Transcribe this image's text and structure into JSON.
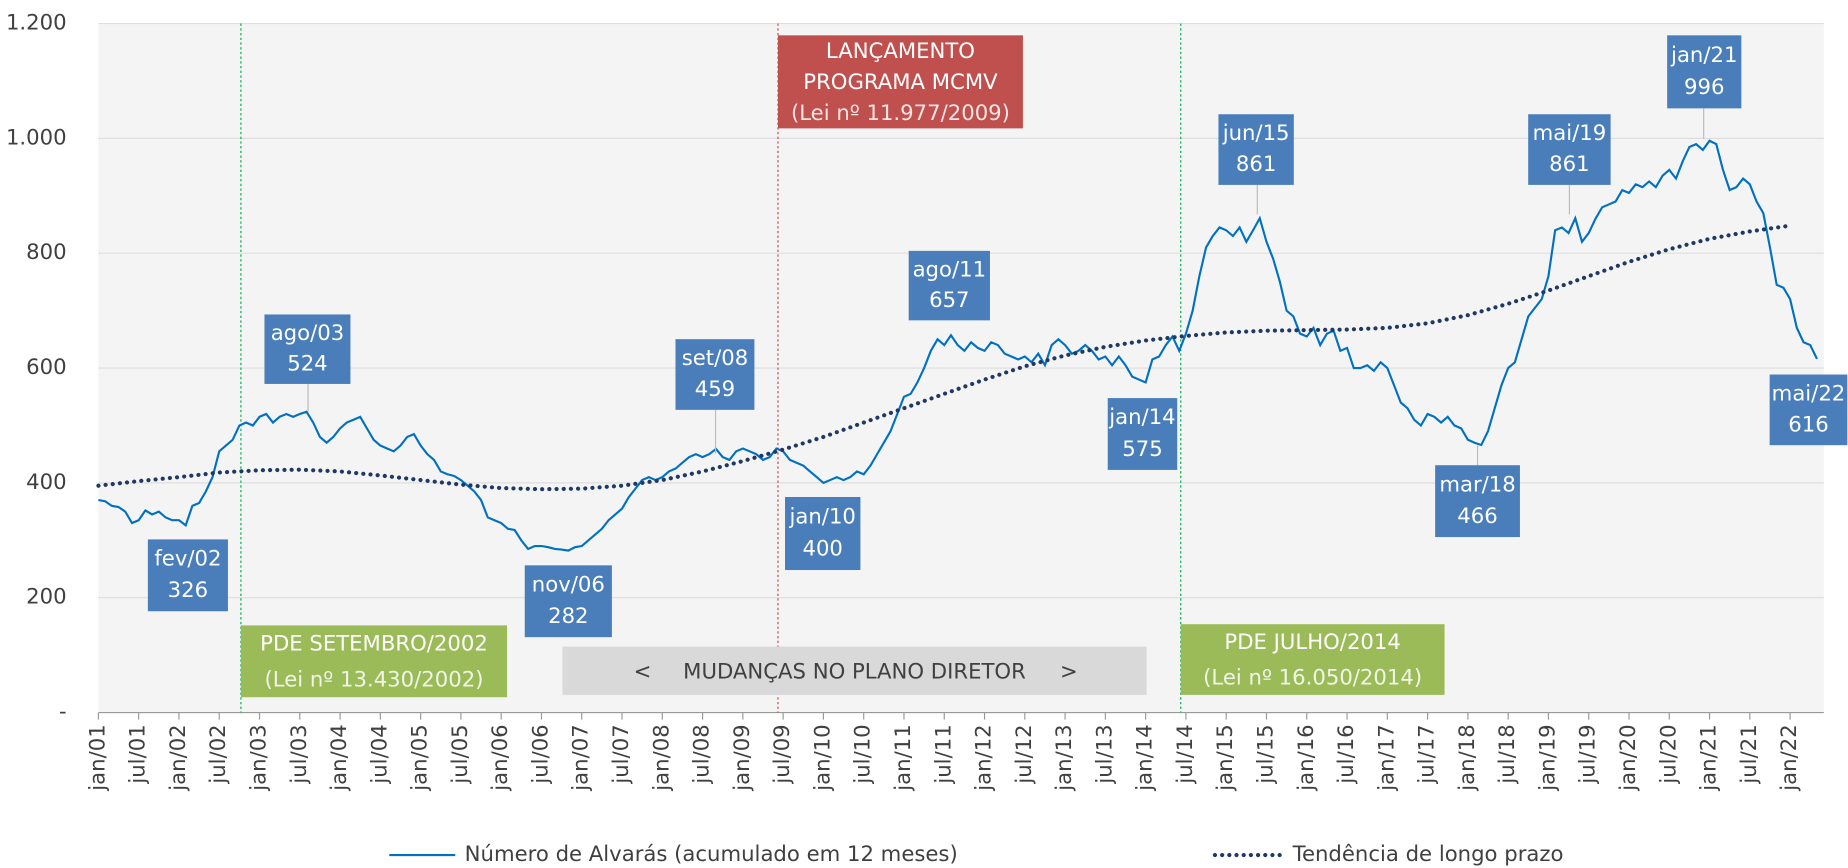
{
  "chart_data": {
    "type": "line",
    "categories": [
      "jan/01",
      null,
      null,
      null,
      null,
      null,
      "jul/01",
      null,
      null,
      null,
      null,
      null,
      "jan/02",
      null,
      null,
      null,
      null,
      null,
      "jul/02",
      null,
      null,
      null,
      null,
      null,
      "jan/03",
      null,
      null,
      null,
      null,
      null,
      "jul/03",
      null,
      null,
      null,
      null,
      null,
      "jan/04",
      null,
      null,
      null,
      null,
      null,
      "jul/04",
      null,
      null,
      null,
      null,
      null,
      "jan/05",
      null,
      null,
      null,
      null,
      null,
      "jul/05",
      null,
      null,
      null,
      null,
      null,
      "jan/06",
      null,
      null,
      null,
      null,
      null,
      "jul/06",
      null,
      null,
      null,
      null,
      null,
      "jan/07",
      null,
      null,
      null,
      null,
      null,
      "jul/07",
      null,
      null,
      null,
      null,
      null,
      "jan/08",
      null,
      null,
      null,
      null,
      null,
      "jul/08",
      null,
      null,
      null,
      null,
      null,
      "jan/09",
      null,
      null,
      null,
      null,
      null,
      "jul/09",
      null,
      null,
      null,
      null,
      null,
      "jan/10",
      null,
      null,
      null,
      null,
      null,
      "jul/10",
      null,
      null,
      null,
      null,
      null,
      "jan/11",
      null,
      null,
      null,
      null,
      null,
      "jul/11",
      null,
      null,
      null,
      null,
      null,
      "jan/12",
      null,
      null,
      null,
      null,
      null,
      "jul/12",
      null,
      null,
      null,
      null,
      null,
      "jan/13",
      null,
      null,
      null,
      null,
      null,
      "jul/13",
      null,
      null,
      null,
      null,
      null,
      "jan/14",
      null,
      null,
      null,
      null,
      null,
      "jul/14",
      null,
      null,
      null,
      null,
      null,
      "jan/15",
      null,
      null,
      null,
      null,
      null,
      "jul/15",
      null,
      null,
      null,
      null,
      null,
      "jan/16",
      null,
      null,
      null,
      null,
      null,
      "jul/16",
      null,
      null,
      null,
      null,
      null,
      "jan/17",
      null,
      null,
      null,
      null,
      null,
      "jul/17",
      null,
      null,
      null,
      null,
      null,
      "jan/18",
      null,
      null,
      null,
      null,
      null,
      "jul/18",
      null,
      null,
      null,
      null,
      null,
      "jan/19",
      null,
      null,
      null,
      null,
      null,
      "jul/19",
      null,
      null,
      null,
      null,
      null,
      "jan/20",
      null,
      null,
      null,
      null,
      null,
      "jul/20",
      null,
      null,
      null,
      null,
      null,
      "jan/21",
      null,
      null,
      null,
      null,
      null,
      "jul/21",
      null,
      null,
      null,
      null,
      null,
      "jan/22",
      null,
      null,
      null,
      null
    ],
    "series": [
      {
        "name": "Número de Alvarás (acumulado em 12 meses)",
        "color": "#0070c0",
        "values": [
          370,
          368,
          360,
          358,
          350,
          330,
          335,
          352,
          345,
          350,
          340,
          335,
          335,
          326,
          360,
          365,
          385,
          410,
          455,
          465,
          475,
          500,
          505,
          500,
          515,
          520,
          505,
          515,
          520,
          515,
          520,
          524,
          505,
          480,
          470,
          480,
          495,
          505,
          510,
          515,
          495,
          475,
          465,
          460,
          455,
          465,
          480,
          485,
          465,
          450,
          440,
          420,
          415,
          412,
          405,
          395,
          385,
          370,
          340,
          335,
          330,
          320,
          318,
          300,
          285,
          290,
          290,
          288,
          285,
          284,
          282,
          288,
          290,
          300,
          310,
          320,
          335,
          345,
          355,
          375,
          390,
          405,
          410,
          405,
          410,
          420,
          425,
          435,
          445,
          450,
          445,
          450,
          459,
          445,
          440,
          455,
          460,
          455,
          450,
          440,
          445,
          460,
          455,
          440,
          435,
          430,
          420,
          410,
          400,
          405,
          410,
          405,
          410,
          420,
          415,
          430,
          450,
          470,
          490,
          520,
          550,
          555,
          575,
          600,
          630,
          650,
          640,
          657,
          640,
          630,
          645,
          635,
          630,
          645,
          640,
          625,
          620,
          615,
          620,
          610,
          625,
          605,
          640,
          650,
          640,
          625,
          630,
          640,
          630,
          615,
          620,
          605,
          620,
          605,
          585,
          580,
          575,
          615,
          620,
          640,
          655,
          630,
          660,
          700,
          760,
          810,
          830,
          845,
          840,
          830,
          845,
          820,
          840,
          861,
          820,
          790,
          750,
          700,
          690,
          660,
          655,
          670,
          640,
          660,
          665,
          630,
          635,
          600,
          600,
          605,
          595,
          610,
          600,
          570,
          540,
          530,
          510,
          500,
          520,
          515,
          505,
          515,
          500,
          495,
          475,
          470,
          466,
          490,
          530,
          570,
          600,
          610,
          650,
          690,
          705,
          720,
          760,
          840,
          845,
          835,
          861,
          820,
          835,
          860,
          880,
          885,
          890,
          910,
          905,
          920,
          915,
          925,
          915,
          935,
          945,
          930,
          960,
          985,
          990,
          980,
          996,
          990,
          945,
          910,
          915,
          930,
          920,
          890,
          870,
          810,
          745,
          740,
          720,
          670,
          645,
          640,
          616
        ]
      },
      {
        "name": "Tendência de longo prazo",
        "color": "#1f3864",
        "style": "dotted",
        "x": [
          "jan/01",
          "jul/01",
          "jan/02",
          "jul/02",
          "jan/03",
          "jul/03",
          "jan/04",
          "jul/04",
          "jan/05",
          "jul/05",
          "jan/06",
          "jul/06",
          "jan/07",
          "jul/07",
          "jan/08",
          "jul/08",
          "jan/09",
          "jul/09",
          "jan/10",
          "jul/10",
          "jan/11",
          "jul/11",
          "jan/12",
          "jul/12",
          "jan/13",
          "jul/13",
          "jan/14",
          "jul/14",
          "jan/15",
          "jul/15",
          "jan/16",
          "jul/16",
          "jan/17",
          "jul/17",
          "jan/18",
          "jul/18",
          "jan/19",
          "jul/19",
          "jan/20",
          "jul/20",
          "jan/21",
          "jul/21",
          "jan/22"
        ],
        "values": [
          395,
          403,
          410,
          418,
          422,
          423,
          420,
          413,
          405,
          397,
          391,
          389,
          390,
          395,
          405,
          420,
          438,
          458,
          480,
          505,
          530,
          555,
          580,
          603,
          622,
          637,
          648,
          656,
          662,
          665,
          666,
          667,
          670,
          678,
          692,
          712,
          735,
          760,
          785,
          807,
          825,
          838,
          848
        ]
      }
    ],
    "ylim": [
      0,
      1200
    ],
    "yticks": [
      {
        "value": 0,
        "label": "-"
      },
      200,
      400,
      600,
      800,
      {
        "value": 1000,
        "label": "1.000"
      },
      {
        "value": 1200,
        "label": "1.200"
      }
    ],
    "grid": true,
    "annotations": [
      {
        "label": "fev/02",
        "value": 326
      },
      {
        "label": "ago/03",
        "value": 524
      },
      {
        "label": "nov/06",
        "value": 282
      },
      {
        "label": "set/08",
        "value": 459
      },
      {
        "label": "jan/10",
        "value": 400
      },
      {
        "label": "ago/11",
        "value": 657
      },
      {
        "label": "jan/14",
        "value": 575
      },
      {
        "label": "jun/15",
        "value": 861
      },
      {
        "label": "mar/18",
        "value": 466
      },
      {
        "label": "mai/19",
        "value": 861
      },
      {
        "label": "jan/21",
        "value": 996
      },
      {
        "label": "mai/22",
        "value": 616
      }
    ],
    "events": [
      {
        "title": [
          "PDE SETEMBRO/2002"
        ],
        "law": "(Lei nº 13.430/2002)"
      },
      {
        "title": [
          "LANÇAMENTO",
          "PROGRAMA MCMV"
        ],
        "law": "(Lei nº 11.977/2009)"
      },
      {
        "title": [
          "PDE JULHO/2014"
        ],
        "law": "(Lei nº 16.050/2014)"
      }
    ],
    "period_band": [
      "<",
      "MUDANÇAS NO PLANO DIRETOR",
      ">"
    ],
    "legend": "bottom"
  }
}
